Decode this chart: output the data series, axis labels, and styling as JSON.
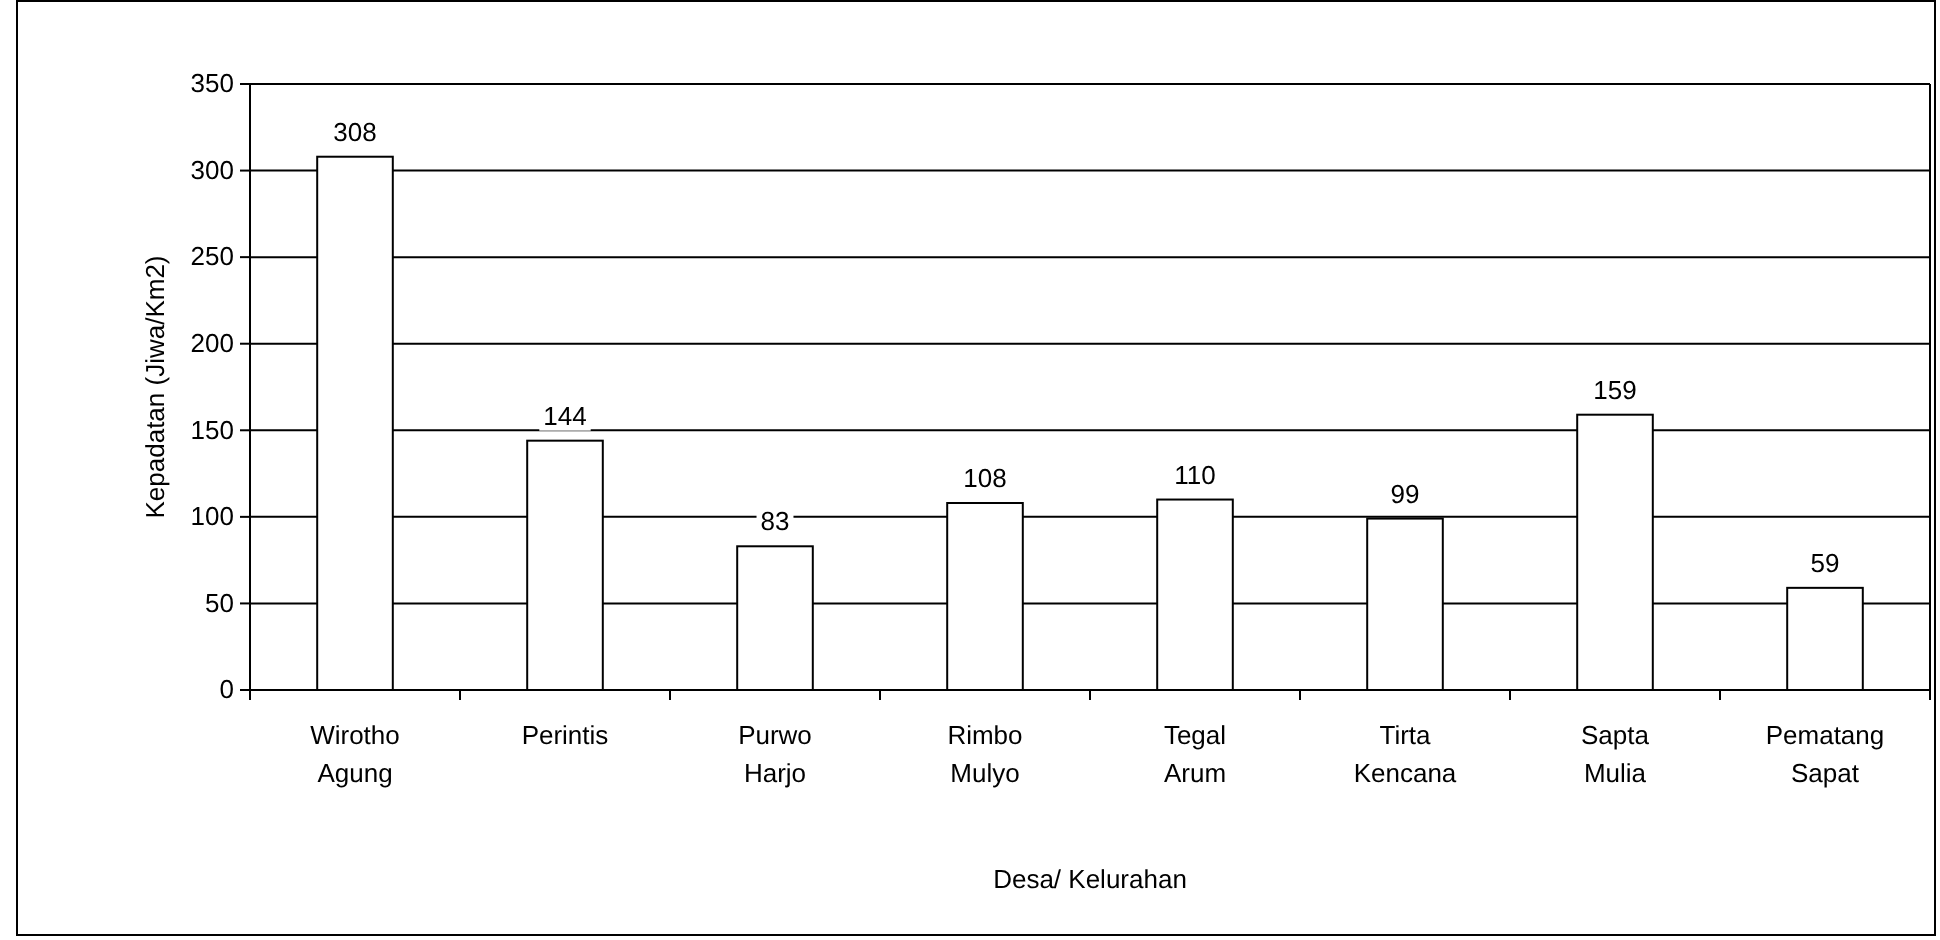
{
  "chart_data": {
    "type": "bar",
    "xlabel": "Desa/ Kelurahan",
    "ylabel": "Kepadatan (Jiwa/Km2)",
    "categories": [
      "Wirotho Agung",
      "Perintis",
      "Purwo Harjo",
      "Rimbo Mulyo",
      "Tegal Arum",
      "Tirta Kencana",
      "Sapta Mulia",
      "Pematang Sapat"
    ],
    "values": [
      308,
      144,
      83,
      108,
      110,
      99,
      159,
      59
    ],
    "color": "#ffffff",
    "ylim": [
      0,
      350
    ],
    "yticks": [
      0,
      50,
      100,
      150,
      200,
      250,
      300,
      350
    ],
    "grid": "y",
    "data_labels": true
  }
}
